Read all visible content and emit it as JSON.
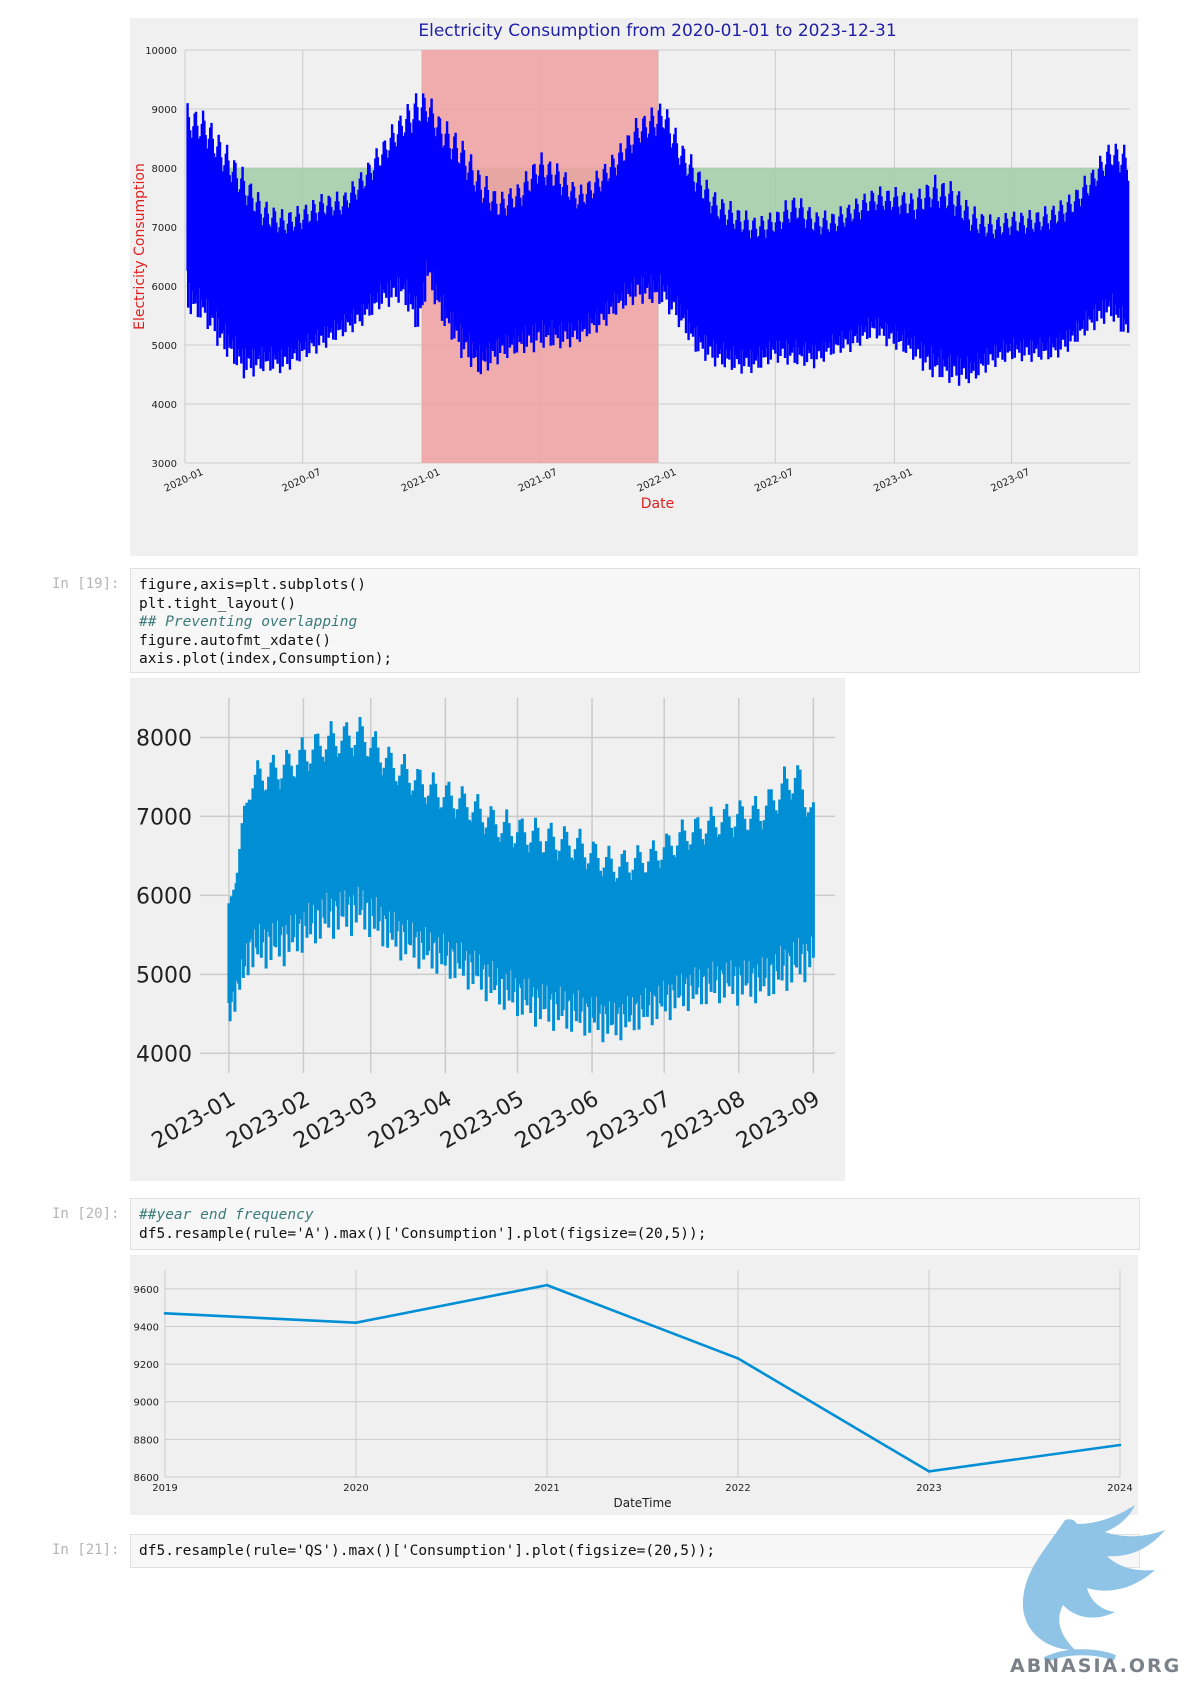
{
  "charts": {
    "chart1": {
      "type": "line",
      "title": "Electricity Consumption from 2020-01-01 to 2023-12-31",
      "xlabel": "Date",
      "ylabel": "Electricity Consumption",
      "ylim": [
        3000,
        10000
      ],
      "yticks": [
        3000,
        4000,
        5000,
        6000,
        7000,
        8000,
        9000,
        10000
      ],
      "xticks": [
        "2020-01",
        "2020-07",
        "2021-01",
        "2021-07",
        "2022-01",
        "2022-07",
        "2023-01",
        "2023-07"
      ],
      "xrange": [
        "2020-01-01",
        "2023-12-31"
      ],
      "highlight_span": [
        "2021-01-01",
        "2022-01-01"
      ],
      "fill_below_threshold": 8000,
      "colors": {
        "line": "#0000ff",
        "span": "#f0a0a0",
        "fill": "#a5ceaa",
        "title": "#1f1fa8",
        "axis_label": "#e02020"
      },
      "grid": true,
      "series": [
        {
          "envelope": {
            "x": [
              "2020-01-05",
              "2020-02-01",
              "2020-03-01",
              "2020-04-01",
              "2020-05-01",
              "2020-06-01",
              "2020-07-01",
              "2020-08-01",
              "2020-09-01",
              "2020-10-01",
              "2020-11-01",
              "2020-12-01",
              "2020-12-28",
              "2021-01-10",
              "2021-02-01",
              "2021-03-01",
              "2021-04-01",
              "2021-05-01",
              "2021-06-01",
              "2021-07-01",
              "2021-08-01",
              "2021-09-01",
              "2021-10-01",
              "2021-11-01",
              "2021-12-01",
              "2022-01-10",
              "2022-02-01",
              "2022-03-01",
              "2022-04-01",
              "2022-05-01",
              "2022-06-01",
              "2022-07-01",
              "2022-08-01",
              "2022-09-01",
              "2022-10-01",
              "2022-11-01",
              "2022-12-01",
              "2023-01-01",
              "2023-02-01",
              "2023-03-01",
              "2023-04-01",
              "2023-05-01",
              "2023-06-01",
              "2023-07-01",
              "2023-08-01",
              "2023-09-01",
              "2023-10-01",
              "2023-11-01",
              "2023-12-01",
              "2023-12-28"
            ],
            "high": [
              9100,
              9000,
              8500,
              8000,
              7500,
              7300,
              7400,
              7600,
              7600,
              8000,
              8500,
              9000,
              9400,
              9300,
              8900,
              8600,
              8000,
              7600,
              7800,
              8300,
              8100,
              7700,
              8000,
              8400,
              8900,
              9200,
              8600,
              8100,
              7600,
              7400,
              7200,
              7300,
              7600,
              7300,
              7300,
              7500,
              7700,
              7700,
              7600,
              7900,
              7800,
              7400,
              7200,
              7300,
              7300,
              7400,
              7600,
              8000,
              8500,
              8400
            ],
            "low": [
              5500,
              5300,
              4800,
              4400,
              4500,
              4500,
              4700,
              4900,
              5100,
              5300,
              5600,
              5700,
              5100,
              6000,
              5300,
              4800,
              4400,
              4700,
              4800,
              4900,
              4900,
              5000,
              5200,
              5500,
              5700,
              5600,
              5300,
              4800,
              4600,
              4500,
              4500,
              4700,
              4600,
              4600,
              4800,
              4900,
              5100,
              4900,
              4700,
              4400,
              4300,
              4300,
              4600,
              4700,
              4700,
              4700,
              4900,
              5200,
              5400,
              5000
            ]
          }
        }
      ]
    },
    "chart2": {
      "type": "line",
      "ylim": [
        3750,
        8500
      ],
      "yticks": [
        4000,
        5000,
        6000,
        7000,
        8000
      ],
      "xticks": [
        "2023-01",
        "2023-02",
        "2023-03",
        "2023-04",
        "2023-05",
        "2023-06",
        "2023-07",
        "2023-08",
        "2023-09"
      ],
      "xrange": [
        "2022-12-20",
        "2023-09-10"
      ],
      "colors": {
        "line": "#008fd5"
      },
      "grid": true,
      "series": [
        {
          "envelope": {
            "x": [
              "2023-01-01",
              "2023-01-10",
              "2023-01-25",
              "2023-02-10",
              "2023-02-25",
              "2023-03-10",
              "2023-03-25",
              "2023-04-10",
              "2023-04-25",
              "2023-05-10",
              "2023-05-25",
              "2023-06-10",
              "2023-06-25",
              "2023-07-10",
              "2023-07-25",
              "2023-08-10",
              "2023-08-25",
              "2023-09-01"
            ],
            "high": [
              5900,
              7700,
              7900,
              8200,
              8300,
              7900,
              7600,
              7400,
              7100,
              7000,
              6900,
              6600,
              6700,
              7000,
              7200,
              7300,
              7800,
              7200
            ],
            "low": [
              4300,
              5000,
              5100,
              5400,
              5500,
              5200,
              5000,
              4800,
              4500,
              4300,
              4200,
              4100,
              4300,
              4500,
              4600,
              4600,
              4800,
              5000
            ]
          }
        }
      ]
    },
    "chart3": {
      "type": "line",
      "xlabel": "DateTime",
      "x": [
        "2019",
        "2020",
        "2021",
        "2022",
        "2023",
        "2024"
      ],
      "ylim": [
        8600,
        9700
      ],
      "yticks": [
        8600,
        8800,
        9000,
        9200,
        9400,
        9600
      ],
      "colors": {
        "line": "#008fd5"
      },
      "grid": true,
      "series": [
        {
          "values": [
            9470,
            9420,
            9620,
            9230,
            8630,
            8770
          ]
        }
      ]
    }
  },
  "cells": {
    "c19": {
      "prompt": "In [19]:",
      "lines": [
        "figure,axis=plt.subplots()",
        "plt.tight_layout()",
        "## Preventing overlapping",
        "figure.autofmt_xdate()",
        "axis.plot(index,Consumption);"
      ]
    },
    "c20": {
      "prompt": "In [20]:",
      "lines": [
        "##year end frequency",
        "df5.resample(rule='A').max()['Consumption'].plot(figsize=(20,5));"
      ]
    },
    "c21": {
      "prompt": "In [21]:",
      "lines": [
        "df5.resample(rule='QS').max()['Consumption'].plot(figsize=(20,5));"
      ]
    }
  },
  "watermark": {
    "text": "ABNASIA.ORG",
    "icon": "griffin-logo-icon"
  }
}
